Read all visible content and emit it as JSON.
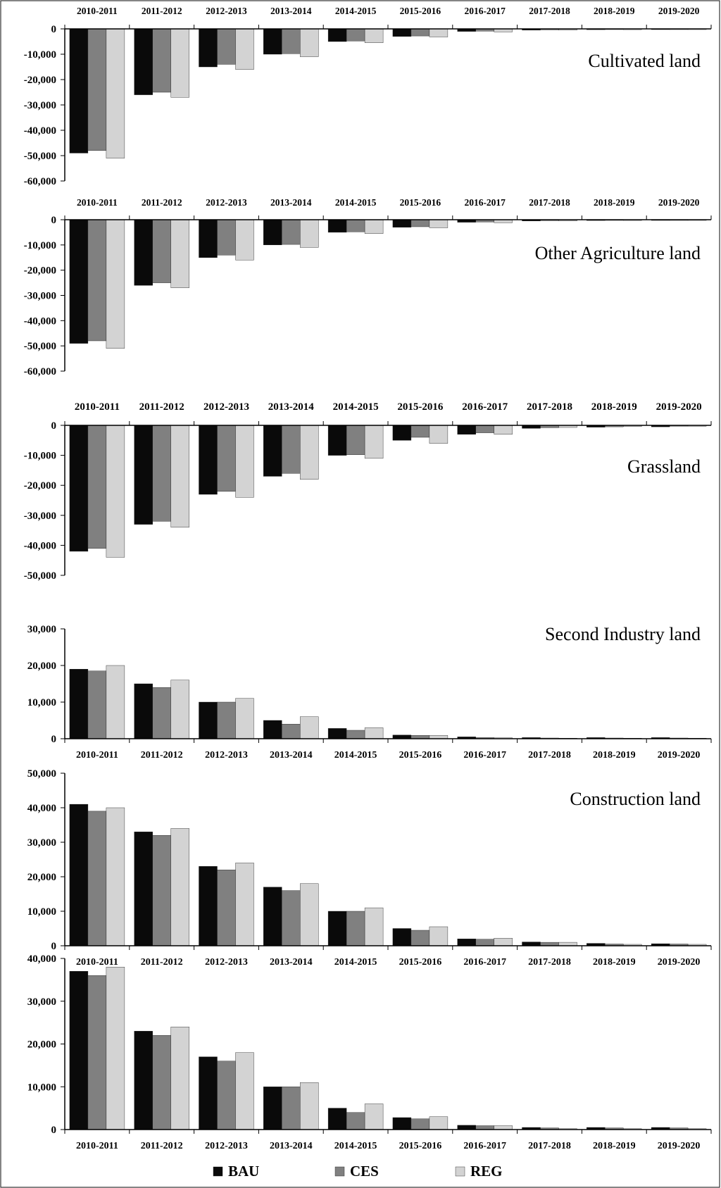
{
  "colors": {
    "series": [
      "#0a0a0a",
      "#808080",
      "#d3d3d3"
    ],
    "axis": "#000000",
    "frame": "#333333",
    "text": "#000000"
  },
  "legend": {
    "placement": "bottom-center",
    "items": [
      {
        "label": "BAU",
        "color": "#0a0a0a"
      },
      {
        "label": "CES",
        "color": "#808080"
      },
      {
        "label": "REG",
        "color": "#d3d3d3"
      }
    ]
  },
  "chart_data": [
    {
      "type": "bar",
      "title": "Cultivated land",
      "categories": [
        "2010-2011",
        "2011-2012",
        "2012-2013",
        "2013-2014",
        "2014-2015",
        "2015-2016",
        "2016-2017",
        "2017-2018",
        "2018-2019",
        "2019-2020"
      ],
      "yticks": [
        "0",
        "-10,000",
        "-20,000",
        "-30,000",
        "-40,000",
        "-50,000",
        "-60,000"
      ],
      "ylim": [
        -60000,
        0
      ],
      "series": [
        {
          "name": "BAU",
          "values": [
            -49000,
            -26000,
            -15000,
            -10000,
            -5000,
            -3000,
            -1000,
            -500,
            -300,
            -200
          ]
        },
        {
          "name": "CES",
          "values": [
            -48000,
            -25000,
            -14000,
            -9800,
            -4800,
            -2800,
            -900,
            -400,
            -250,
            -150
          ]
        },
        {
          "name": "REG",
          "values": [
            -51000,
            -27000,
            -16000,
            -11000,
            -5500,
            -3200,
            -1200,
            -500,
            -300,
            -200
          ]
        }
      ]
    },
    {
      "type": "bar",
      "title": "Other Agriculture land",
      "categories": [
        "2010-2011",
        "2011-2012",
        "2012-2013",
        "2013-2014",
        "2014-2015",
        "2015-2016",
        "2016-2017",
        "2017-2018",
        "2018-2019",
        "2019-2020"
      ],
      "yticks": [
        "0",
        "-10,000",
        "-20,000",
        "-30,000",
        "-40,000",
        "-50,000",
        "-60,000"
      ],
      "ylim": [
        -60000,
        0
      ],
      "series": [
        {
          "name": "BAU",
          "values": [
            -49000,
            -26000,
            -15000,
            -10000,
            -5000,
            -3000,
            -1000,
            -500,
            -300,
            -200
          ]
        },
        {
          "name": "CES",
          "values": [
            -48000,
            -25000,
            -14000,
            -9800,
            -4800,
            -2800,
            -900,
            -400,
            -250,
            -150
          ]
        },
        {
          "name": "REG",
          "values": [
            -51000,
            -27000,
            -16000,
            -11000,
            -5500,
            -3200,
            -1200,
            -500,
            -300,
            -200
          ]
        }
      ]
    },
    {
      "type": "bar",
      "title": "Grassland",
      "categories": [
        "2010-2011",
        "2011-2012",
        "2012-2013",
        "2013-2014",
        "2014-2015",
        "2015-2016",
        "2016-2017",
        "2017-2018",
        "2018-2019",
        "2019-2020"
      ],
      "yticks": [
        "0",
        "-10,000",
        "-20,000",
        "-30,000",
        "-40,000",
        "-50,000"
      ],
      "ylim": [
        -50000,
        0
      ],
      "series": [
        {
          "name": "BAU",
          "values": [
            -42000,
            -33000,
            -23000,
            -17000,
            -10000,
            -5000,
            -3000,
            -1000,
            -600,
            -500
          ]
        },
        {
          "name": "CES",
          "values": [
            -41000,
            -32000,
            -22000,
            -16000,
            -9800,
            -4000,
            -2500,
            -800,
            -500,
            -300
          ]
        },
        {
          "name": "REG",
          "values": [
            -44000,
            -34000,
            -24000,
            -18000,
            -11000,
            -6000,
            -3000,
            -700,
            -400,
            -300
          ]
        }
      ]
    },
    {
      "type": "bar",
      "title": "Second Industry land",
      "categories": [
        "2010-2011",
        "2011-2012",
        "2012-2013",
        "2013-2014",
        "2014-2015",
        "2015-2016",
        "2016-2017",
        "2017-2018",
        "2018-2019",
        "2019-2020"
      ],
      "yticks": [
        "0",
        "10,000",
        "20,000",
        "30,000"
      ],
      "ylim": [
        0,
        30000
      ],
      "series": [
        {
          "name": "BAU",
          "values": [
            19000,
            15000,
            10000,
            5000,
            2800,
            1000,
            500,
            300,
            300,
            300
          ]
        },
        {
          "name": "CES",
          "values": [
            18500,
            14000,
            10000,
            4000,
            2300,
            900,
            300,
            200,
            200,
            200
          ]
        },
        {
          "name": "REG",
          "values": [
            20000,
            16000,
            11000,
            6000,
            3000,
            900,
            250,
            150,
            150,
            150
          ]
        }
      ]
    },
    {
      "type": "bar",
      "title": "Construction land",
      "categories": [
        "2010-2011",
        "2011-2012",
        "2012-2013",
        "2013-2014",
        "2014-2015",
        "2015-2016",
        "2016-2017",
        "2017-2018",
        "2018-2019",
        "2019-2020"
      ],
      "yticks": [
        "0",
        "10,000",
        "20,000",
        "30,000",
        "40,000",
        "50,000"
      ],
      "ylim": [
        0,
        50000
      ],
      "series": [
        {
          "name": "BAU",
          "values": [
            41000,
            33000,
            23000,
            17000,
            10000,
            5000,
            2000,
            1100,
            700,
            600
          ]
        },
        {
          "name": "CES",
          "values": [
            39000,
            32000,
            22000,
            16000,
            10000,
            4500,
            1900,
            1000,
            500,
            500
          ]
        },
        {
          "name": "REG",
          "values": [
            40000,
            34000,
            24000,
            18000,
            11000,
            5500,
            2200,
            1000,
            400,
            400
          ]
        }
      ]
    },
    {
      "type": "bar",
      "title": "",
      "categories": [
        "2010-2011",
        "2011-2012",
        "2012-2013",
        "2013-2014",
        "2014-2015",
        "2015-2016",
        "2016-2017",
        "2017-2018",
        "2018-2019",
        "2019-2020"
      ],
      "yticks": [
        "0",
        "10,000",
        "20,000",
        "30,000",
        "40,000"
      ],
      "ylim": [
        0,
        40000
      ],
      "series": [
        {
          "name": "BAU",
          "values": [
            37000,
            23000,
            17000,
            10000,
            5000,
            2800,
            1000,
            500,
            500,
            500
          ]
        },
        {
          "name": "CES",
          "values": [
            36000,
            22000,
            16000,
            10000,
            4000,
            2500,
            900,
            400,
            400,
            400
          ]
        },
        {
          "name": "REG",
          "values": [
            38000,
            24000,
            18000,
            11000,
            6000,
            3000,
            900,
            200,
            200,
            200
          ]
        }
      ]
    }
  ]
}
